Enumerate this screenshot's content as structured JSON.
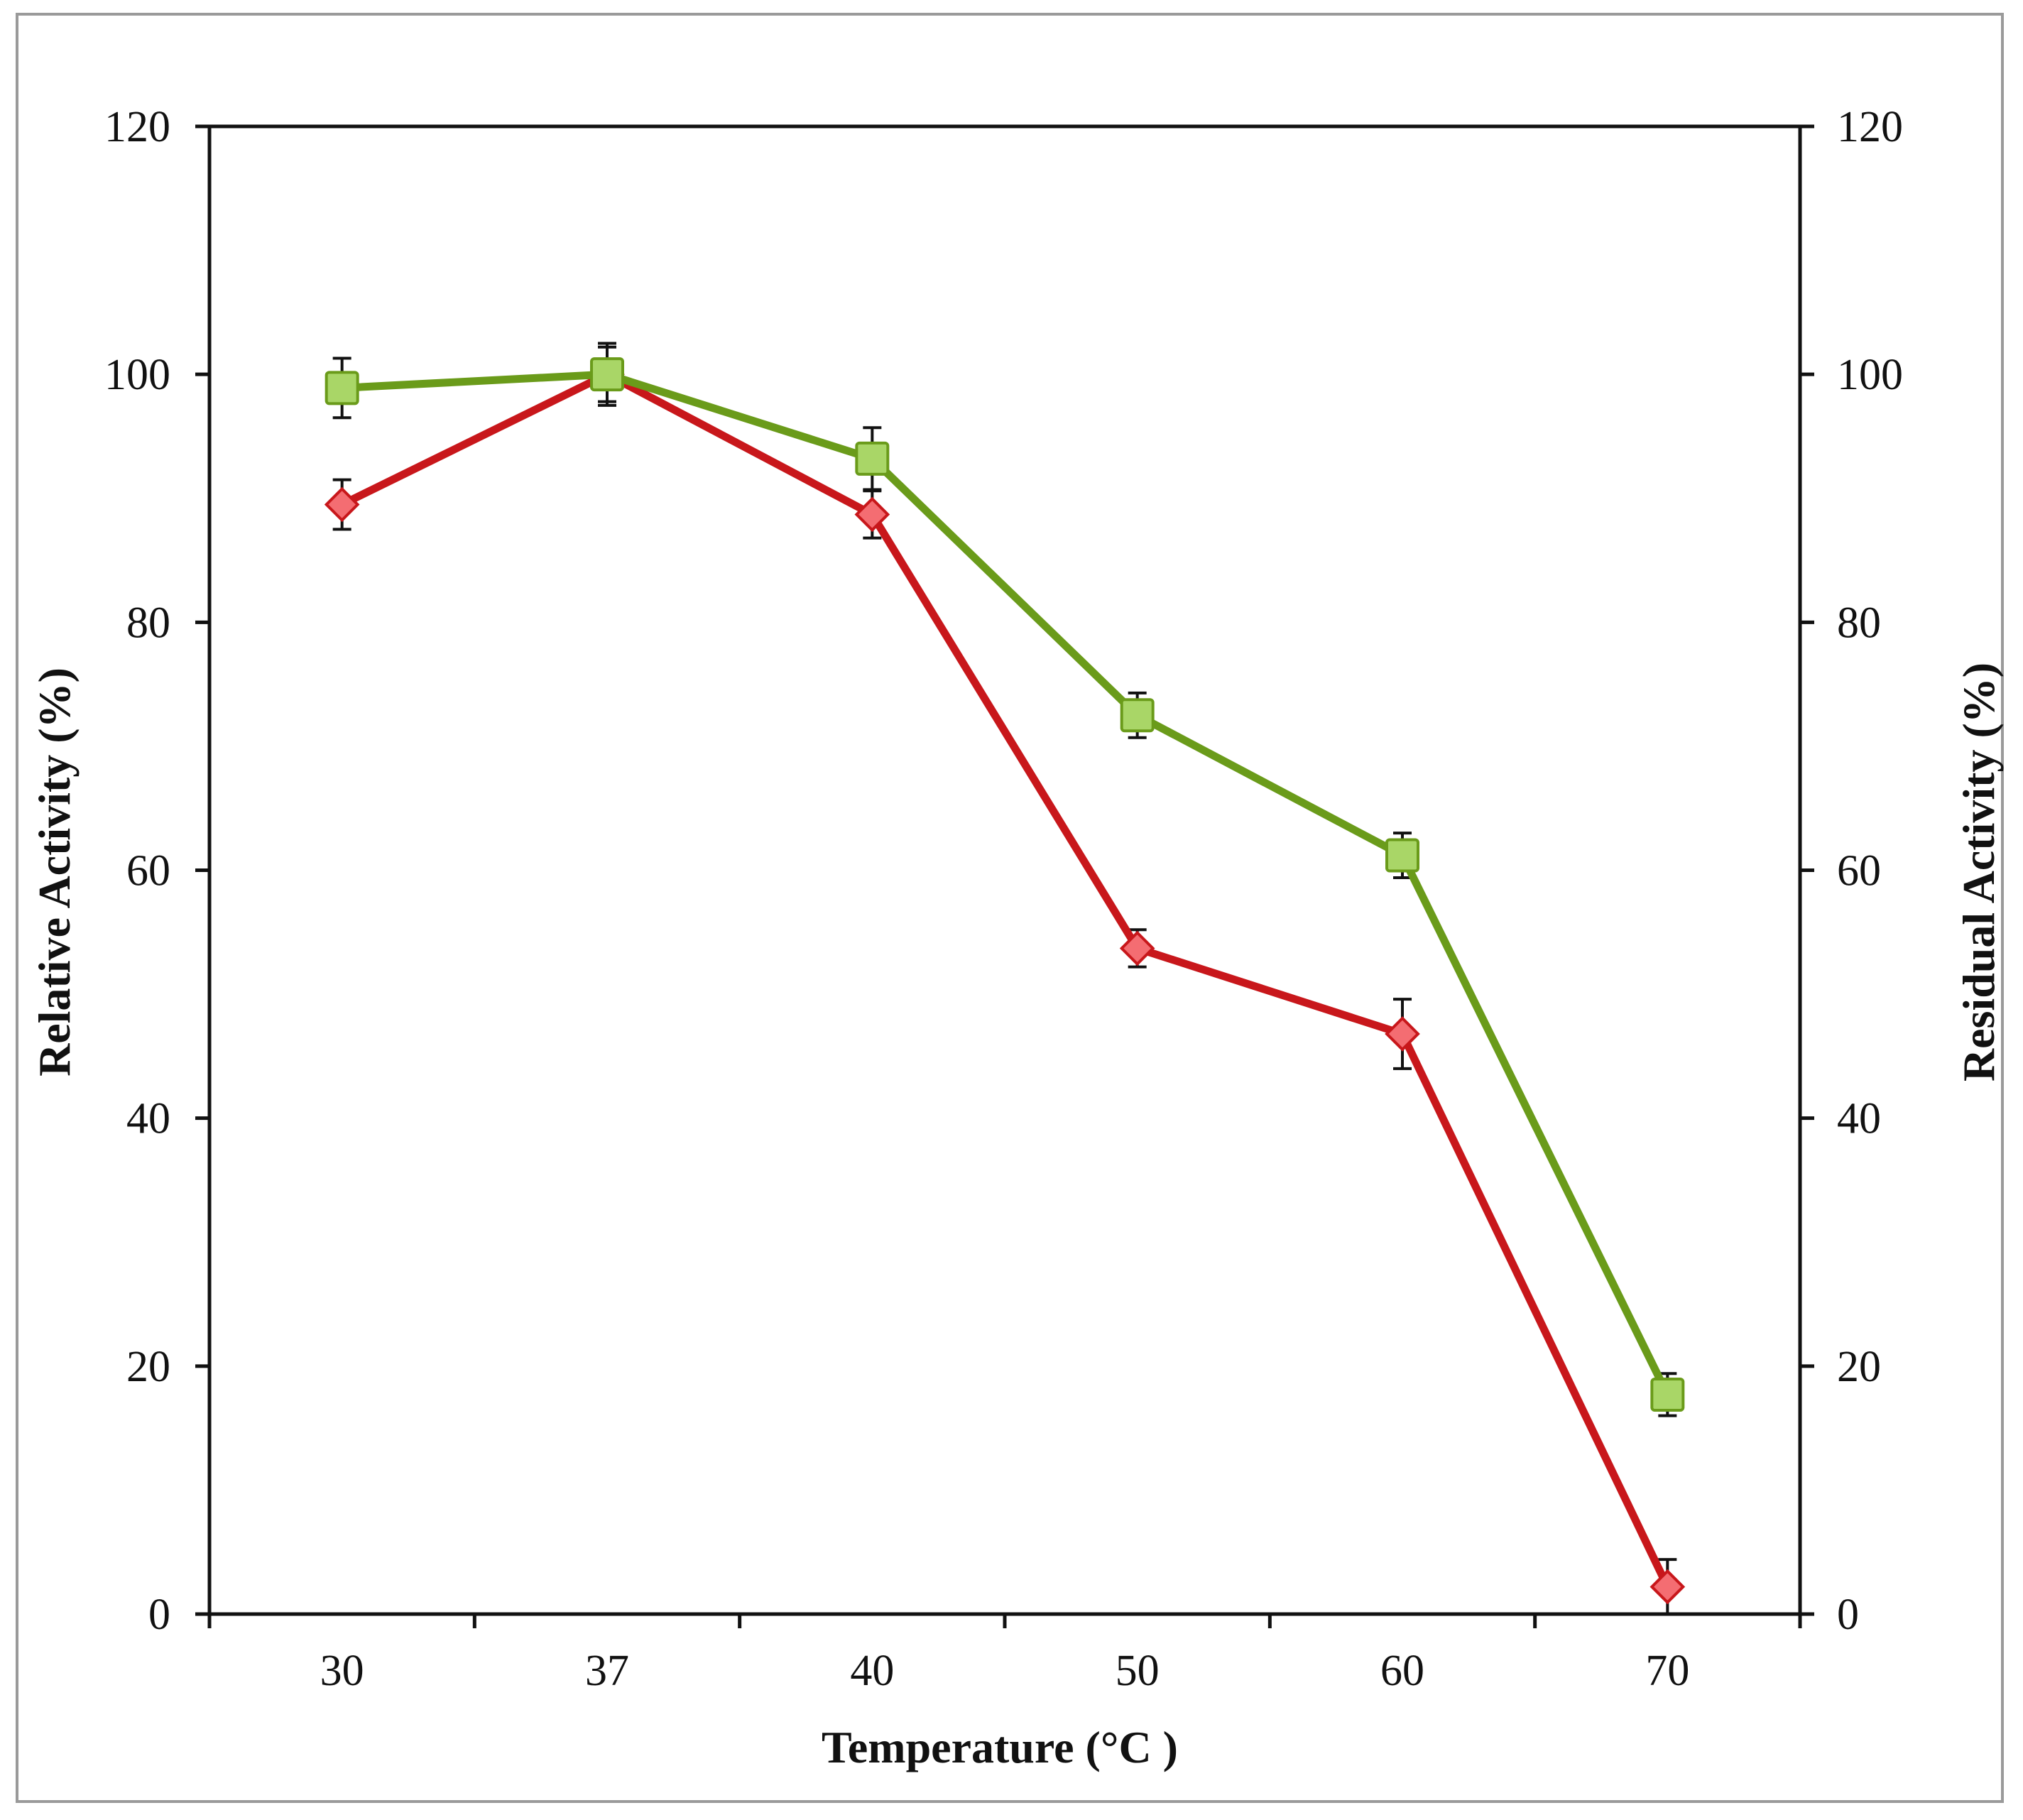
{
  "chart_data": {
    "type": "line",
    "title": "",
    "xlabel": "Temperature (°C )",
    "ylabel": "Relative Activity (%)",
    "y2label": "Residual Activity (%)",
    "categories": [
      "30",
      "37",
      "40",
      "50",
      "60",
      "70"
    ],
    "ylim": [
      0,
      120
    ],
    "y2lim": [
      0,
      120
    ],
    "yticks": [
      "0",
      "20",
      "40",
      "60",
      "80",
      "100",
      "120"
    ],
    "y2ticks": [
      "0",
      "20",
      "40",
      "60",
      "80",
      "100",
      "120"
    ],
    "grid": false,
    "legend": "none",
    "series": [
      {
        "name": "Relative Activity",
        "axis": "left",
        "marker": "diamond",
        "color": "#c8171b",
        "marker_fill": "#f46d72",
        "values": [
          89.5,
          100,
          88.7,
          53.7,
          46.8,
          2.2
        ],
        "errors": [
          2.0,
          2.2,
          1.9,
          1.5,
          2.8,
          2.2
        ]
      },
      {
        "name": "Residual Activity",
        "axis": "right",
        "marker": "square",
        "color": "#6a9b1a",
        "marker_fill": "#a9d667",
        "values": [
          98.9,
          100,
          93.2,
          72.5,
          61.2,
          17.7
        ],
        "errors": [
          2.4,
          2.5,
          2.5,
          1.8,
          1.8,
          1.7
        ]
      }
    ]
  }
}
